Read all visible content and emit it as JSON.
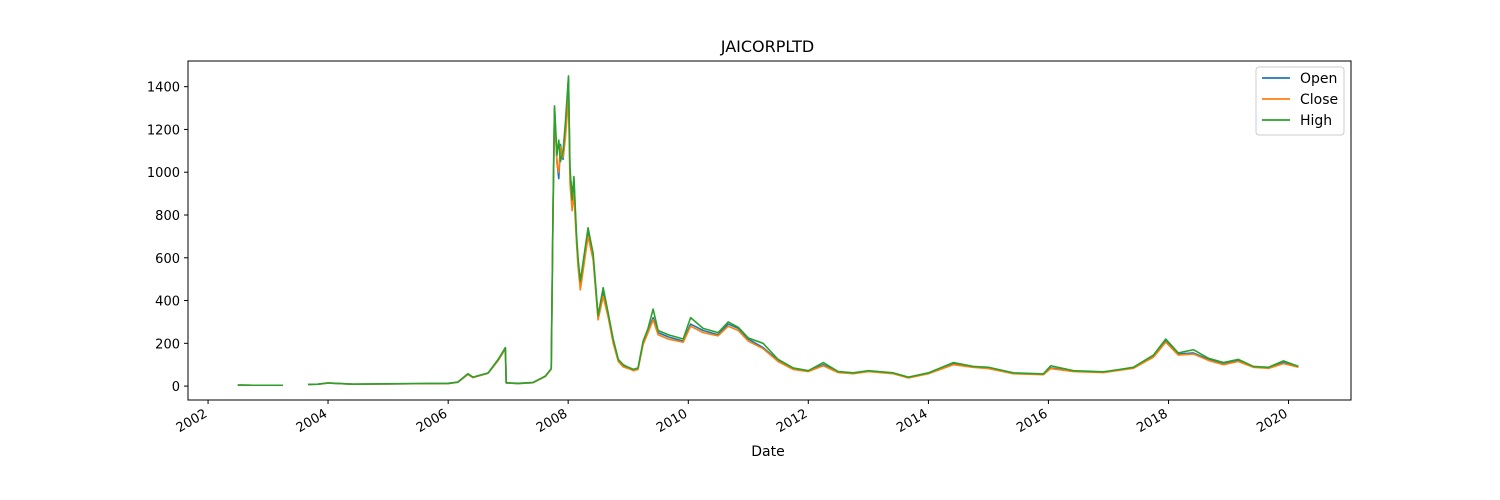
{
  "chart_data": {
    "type": "line",
    "title": "JAICORPLTD",
    "xlabel": "Date",
    "ylabel": "",
    "xlim": [
      "2001-09-01",
      "2021-01-15"
    ],
    "ylim": [
      -65,
      1520
    ],
    "x_ticks": [
      "2002",
      "2004",
      "2006",
      "2008",
      "2010",
      "2012",
      "2014",
      "2016",
      "2018",
      "2020"
    ],
    "y_ticks": [
      0,
      200,
      400,
      600,
      800,
      1000,
      1200,
      1400
    ],
    "legend_position": "top-right",
    "grid": false,
    "series": [
      {
        "name": "Open",
        "color": "#1f77b4",
        "points": [
          [
            "2002-07-01",
            5
          ],
          [
            "2002-10-01",
            4
          ],
          [
            "2003-01-01",
            4
          ],
          [
            "2003-04-01",
            4
          ],
          null,
          [
            "2003-09-01",
            8
          ],
          [
            "2003-11-01",
            9
          ],
          [
            "2004-01-01",
            14
          ],
          [
            "2004-06-01",
            9
          ],
          [
            "2005-01-01",
            10
          ],
          [
            "2005-06-01",
            11
          ],
          [
            "2006-01-01",
            12
          ],
          [
            "2006-03-01",
            18
          ],
          [
            "2006-05-01",
            55
          ],
          [
            "2006-06-01",
            40
          ],
          [
            "2006-09-01",
            60
          ],
          [
            "2006-11-01",
            120
          ],
          [
            "2006-12-15",
            175
          ],
          [
            "2006-12-20",
            15
          ],
          [
            "2007-03-01",
            12
          ],
          [
            "2007-06-01",
            16
          ],
          [
            "2007-08-15",
            45
          ],
          [
            "2007-09-20",
            80
          ],
          [
            "2007-10-01",
            820
          ],
          [
            "2007-10-10",
            1300
          ],
          [
            "2007-10-25",
            1050
          ],
          [
            "2007-11-05",
            970
          ],
          [
            "2007-11-15",
            1130
          ],
          [
            "2007-12-01",
            1060
          ],
          [
            "2007-12-15",
            1180
          ],
          [
            "2008-01-03",
            1440
          ],
          [
            "2008-01-12",
            1000
          ],
          [
            "2008-01-25",
            900
          ],
          [
            "2008-02-05",
            960
          ],
          [
            "2008-02-20",
            700
          ],
          [
            "2008-03-01",
            580
          ],
          [
            "2008-03-15",
            470
          ],
          [
            "2008-04-01",
            560
          ],
          [
            "2008-05-01",
            720
          ],
          [
            "2008-06-01",
            600
          ],
          [
            "2008-07-01",
            320
          ],
          [
            "2008-08-01",
            440
          ],
          [
            "2008-09-01",
            330
          ],
          [
            "2008-10-01",
            210
          ],
          [
            "2008-11-01",
            120
          ],
          [
            "2008-12-01",
            95
          ],
          [
            "2009-01-01",
            85
          ],
          [
            "2009-02-01",
            75
          ],
          [
            "2009-03-01",
            80
          ],
          [
            "2009-04-01",
            200
          ],
          [
            "2009-05-01",
            260
          ],
          [
            "2009-06-01",
            320
          ],
          [
            "2009-07-01",
            250
          ],
          [
            "2009-09-01",
            230
          ],
          [
            "2009-12-01",
            210
          ],
          [
            "2010-01-15",
            290
          ],
          [
            "2010-04-01",
            260
          ],
          [
            "2010-07-01",
            240
          ],
          [
            "2010-09-01",
            290
          ],
          [
            "2010-11-01",
            270
          ],
          [
            "2011-01-01",
            220
          ],
          [
            "2011-04-01",
            180
          ],
          [
            "2011-07-01",
            120
          ],
          [
            "2011-10-01",
            80
          ],
          [
            "2012-01-01",
            70
          ],
          [
            "2012-04-01",
            100
          ],
          [
            "2012-07-01",
            65
          ],
          [
            "2012-10-01",
            60
          ],
          [
            "2013-01-01",
            70
          ],
          [
            "2013-06-01",
            60
          ],
          [
            "2013-09-01",
            40
          ],
          [
            "2014-01-01",
            60
          ],
          [
            "2014-06-01",
            105
          ],
          [
            "2014-10-01",
            90
          ],
          [
            "2015-01-01",
            85
          ],
          [
            "2015-06-01",
            60
          ],
          [
            "2015-12-01",
            55
          ],
          [
            "2016-01-15",
            85
          ],
          [
            "2016-06-01",
            70
          ],
          [
            "2016-12-01",
            65
          ],
          [
            "2017-03-01",
            75
          ],
          [
            "2017-06-01",
            85
          ],
          [
            "2017-10-01",
            140
          ],
          [
            "2017-12-15",
            210
          ],
          [
            "2018-03-01",
            150
          ],
          [
            "2018-06-01",
            155
          ],
          [
            "2018-09-01",
            125
          ],
          [
            "2018-12-01",
            105
          ],
          [
            "2019-03-01",
            120
          ],
          [
            "2019-06-01",
            90
          ],
          [
            "2019-09-01",
            85
          ],
          [
            "2019-12-01",
            110
          ],
          [
            "2020-03-01",
            90
          ]
        ]
      },
      {
        "name": "Close",
        "color": "#ff7f0e",
        "points": [
          [
            "2002-07-01",
            5
          ],
          [
            "2002-10-01",
            4
          ],
          [
            "2003-01-01",
            4
          ],
          [
            "2003-04-01",
            4
          ],
          null,
          [
            "2003-09-01",
            8
          ],
          [
            "2003-11-01",
            9
          ],
          [
            "2004-01-01",
            14
          ],
          [
            "2004-06-01",
            9
          ],
          [
            "2005-01-01",
            10
          ],
          [
            "2005-06-01",
            11
          ],
          [
            "2006-01-01",
            12
          ],
          [
            "2006-03-01",
            18
          ],
          [
            "2006-05-01",
            55
          ],
          [
            "2006-06-01",
            40
          ],
          [
            "2006-09-01",
            60
          ],
          [
            "2006-11-01",
            120
          ],
          [
            "2006-12-15",
            175
          ],
          [
            "2006-12-20",
            15
          ],
          [
            "2007-03-01",
            12
          ],
          [
            "2007-06-01",
            16
          ],
          [
            "2007-08-15",
            45
          ],
          [
            "2007-09-20",
            80
          ],
          [
            "2007-10-01",
            810
          ],
          [
            "2007-10-10",
            1290
          ],
          [
            "2007-10-25",
            1040
          ],
          [
            "2007-11-05",
            1000
          ],
          [
            "2007-11-15",
            1120
          ],
          [
            "2007-12-01",
            1070
          ],
          [
            "2007-12-15",
            1160
          ],
          [
            "2008-01-03",
            1350
          ],
          [
            "2008-01-12",
            950
          ],
          [
            "2008-01-25",
            820
          ],
          [
            "2008-02-05",
            900
          ],
          [
            "2008-02-20",
            680
          ],
          [
            "2008-03-01",
            560
          ],
          [
            "2008-03-15",
            450
          ],
          [
            "2008-04-01",
            540
          ],
          [
            "2008-05-01",
            700
          ],
          [
            "2008-06-01",
            590
          ],
          [
            "2008-07-01",
            310
          ],
          [
            "2008-08-01",
            420
          ],
          [
            "2008-09-01",
            320
          ],
          [
            "2008-10-01",
            200
          ],
          [
            "2008-11-01",
            115
          ],
          [
            "2008-12-01",
            90
          ],
          [
            "2009-01-01",
            82
          ],
          [
            "2009-02-01",
            72
          ],
          [
            "2009-03-01",
            78
          ],
          [
            "2009-04-01",
            195
          ],
          [
            "2009-05-01",
            250
          ],
          [
            "2009-06-01",
            310
          ],
          [
            "2009-07-01",
            240
          ],
          [
            "2009-09-01",
            220
          ],
          [
            "2009-12-01",
            205
          ],
          [
            "2010-01-15",
            280
          ],
          [
            "2010-04-01",
            250
          ],
          [
            "2010-07-01",
            235
          ],
          [
            "2010-09-01",
            280
          ],
          [
            "2010-11-01",
            260
          ],
          [
            "2011-01-01",
            210
          ],
          [
            "2011-04-01",
            175
          ],
          [
            "2011-07-01",
            115
          ],
          [
            "2011-10-01",
            78
          ],
          [
            "2012-01-01",
            68
          ],
          [
            "2012-04-01",
            95
          ],
          [
            "2012-07-01",
            63
          ],
          [
            "2012-10-01",
            58
          ],
          [
            "2013-01-01",
            68
          ],
          [
            "2013-06-01",
            58
          ],
          [
            "2013-09-01",
            38
          ],
          [
            "2014-01-01",
            58
          ],
          [
            "2014-06-01",
            100
          ],
          [
            "2014-10-01",
            88
          ],
          [
            "2015-01-01",
            82
          ],
          [
            "2015-06-01",
            58
          ],
          [
            "2015-12-01",
            53
          ],
          [
            "2016-01-15",
            82
          ],
          [
            "2016-06-01",
            68
          ],
          [
            "2016-12-01",
            63
          ],
          [
            "2017-03-01",
            73
          ],
          [
            "2017-06-01",
            83
          ],
          [
            "2017-10-01",
            135
          ],
          [
            "2017-12-15",
            205
          ],
          [
            "2018-03-01",
            145
          ],
          [
            "2018-06-01",
            150
          ],
          [
            "2018-09-01",
            120
          ],
          [
            "2018-12-01",
            100
          ],
          [
            "2019-03-01",
            115
          ],
          [
            "2019-06-01",
            88
          ],
          [
            "2019-09-01",
            83
          ],
          [
            "2019-12-01",
            105
          ],
          [
            "2020-03-01",
            88
          ]
        ]
      },
      {
        "name": "High",
        "color": "#2ca02c",
        "points": [
          [
            "2002-07-01",
            5
          ],
          [
            "2002-10-01",
            4
          ],
          [
            "2003-01-01",
            4
          ],
          [
            "2003-04-01",
            4
          ],
          null,
          [
            "2003-09-01",
            8
          ],
          [
            "2003-11-01",
            9
          ],
          [
            "2004-01-01",
            15
          ],
          [
            "2004-06-01",
            9
          ],
          [
            "2005-01-01",
            11
          ],
          [
            "2005-06-01",
            12
          ],
          [
            "2006-01-01",
            13
          ],
          [
            "2006-03-01",
            19
          ],
          [
            "2006-05-01",
            58
          ],
          [
            "2006-06-01",
            42
          ],
          [
            "2006-09-01",
            62
          ],
          [
            "2006-11-01",
            125
          ],
          [
            "2006-12-15",
            180
          ],
          [
            "2006-12-20",
            16
          ],
          [
            "2007-03-01",
            13
          ],
          [
            "2007-06-01",
            17
          ],
          [
            "2007-08-15",
            47
          ],
          [
            "2007-09-20",
            82
          ],
          [
            "2007-10-01",
            850
          ],
          [
            "2007-10-10",
            1310
          ],
          [
            "2007-10-25",
            1080
          ],
          [
            "2007-11-05",
            1150
          ],
          [
            "2007-11-15",
            1050
          ],
          [
            "2007-12-01",
            1100
          ],
          [
            "2007-12-15",
            1230
          ],
          [
            "2008-01-03",
            1450
          ],
          [
            "2008-01-12",
            1020
          ],
          [
            "2008-01-25",
            870
          ],
          [
            "2008-02-05",
            980
          ],
          [
            "2008-02-20",
            720
          ],
          [
            "2008-03-01",
            600
          ],
          [
            "2008-03-15",
            490
          ],
          [
            "2008-04-01",
            580
          ],
          [
            "2008-05-01",
            740
          ],
          [
            "2008-06-01",
            620
          ],
          [
            "2008-07-01",
            330
          ],
          [
            "2008-08-01",
            460
          ],
          [
            "2008-09-01",
            340
          ],
          [
            "2008-10-01",
            220
          ],
          [
            "2008-11-01",
            125
          ],
          [
            "2008-12-01",
            100
          ],
          [
            "2009-01-01",
            88
          ],
          [
            "2009-02-01",
            78
          ],
          [
            "2009-03-01",
            85
          ],
          [
            "2009-04-01",
            210
          ],
          [
            "2009-05-01",
            270
          ],
          [
            "2009-06-01",
            360
          ],
          [
            "2009-07-01",
            260
          ],
          [
            "2009-09-01",
            240
          ],
          [
            "2009-12-01",
            220
          ],
          [
            "2010-01-15",
            320
          ],
          [
            "2010-04-01",
            270
          ],
          [
            "2010-07-01",
            250
          ],
          [
            "2010-09-01",
            300
          ],
          [
            "2010-11-01",
            275
          ],
          [
            "2011-01-01",
            225
          ],
          [
            "2011-04-01",
            200
          ],
          [
            "2011-07-01",
            125
          ],
          [
            "2011-10-01",
            85
          ],
          [
            "2012-01-01",
            72
          ],
          [
            "2012-04-01",
            110
          ],
          [
            "2012-07-01",
            68
          ],
          [
            "2012-10-01",
            62
          ],
          [
            "2013-01-01",
            72
          ],
          [
            "2013-06-01",
            62
          ],
          [
            "2013-09-01",
            42
          ],
          [
            "2014-01-01",
            62
          ],
          [
            "2014-06-01",
            110
          ],
          [
            "2014-10-01",
            92
          ],
          [
            "2015-01-01",
            88
          ],
          [
            "2015-06-01",
            62
          ],
          [
            "2015-12-01",
            57
          ],
          [
            "2016-01-15",
            95
          ],
          [
            "2016-06-01",
            72
          ],
          [
            "2016-12-01",
            67
          ],
          [
            "2017-03-01",
            77
          ],
          [
            "2017-06-01",
            88
          ],
          [
            "2017-10-01",
            145
          ],
          [
            "2017-12-15",
            220
          ],
          [
            "2018-03-01",
            155
          ],
          [
            "2018-06-01",
            170
          ],
          [
            "2018-09-01",
            130
          ],
          [
            "2018-12-01",
            110
          ],
          [
            "2019-03-01",
            125
          ],
          [
            "2019-06-01",
            92
          ],
          [
            "2019-09-01",
            88
          ],
          [
            "2019-12-01",
            118
          ],
          [
            "2020-03-01",
            92
          ]
        ]
      }
    ]
  }
}
